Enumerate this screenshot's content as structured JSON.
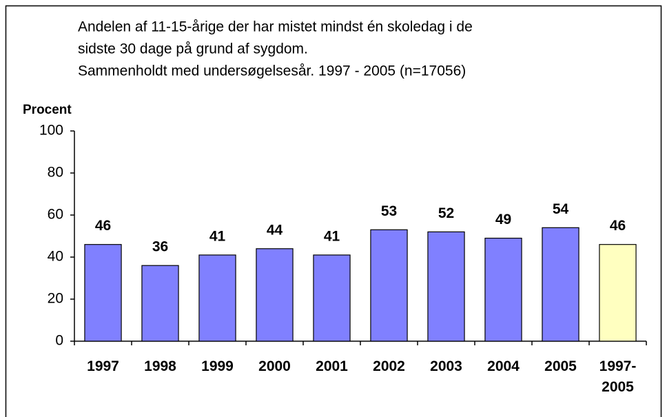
{
  "chart_data": {
    "type": "bar",
    "title": [
      "Andelen af 11-15-årige der har mistet mindst én skoledag i de",
      "sidste 30 dage på grund af sygdom.",
      "Sammenholdt med undersøgelsesår. 1997 - 2005 (n=17056)"
    ],
    "ylabel": "Procent",
    "categories": [
      "1997",
      "1998",
      "1999",
      "2000",
      "2001",
      "2002",
      "2003",
      "2004",
      "2005",
      "1997-2005"
    ],
    "values": [
      46,
      36,
      41,
      44,
      41,
      53,
      52,
      49,
      54,
      46
    ],
    "colors": [
      "#8080ff",
      "#8080ff",
      "#8080ff",
      "#8080ff",
      "#8080ff",
      "#8080ff",
      "#8080ff",
      "#8080ff",
      "#8080ff",
      "#ffffc0"
    ],
    "ylim": [
      0,
      100
    ],
    "yticks": [
      0,
      20,
      40,
      60,
      80,
      100
    ],
    "grid": false
  }
}
